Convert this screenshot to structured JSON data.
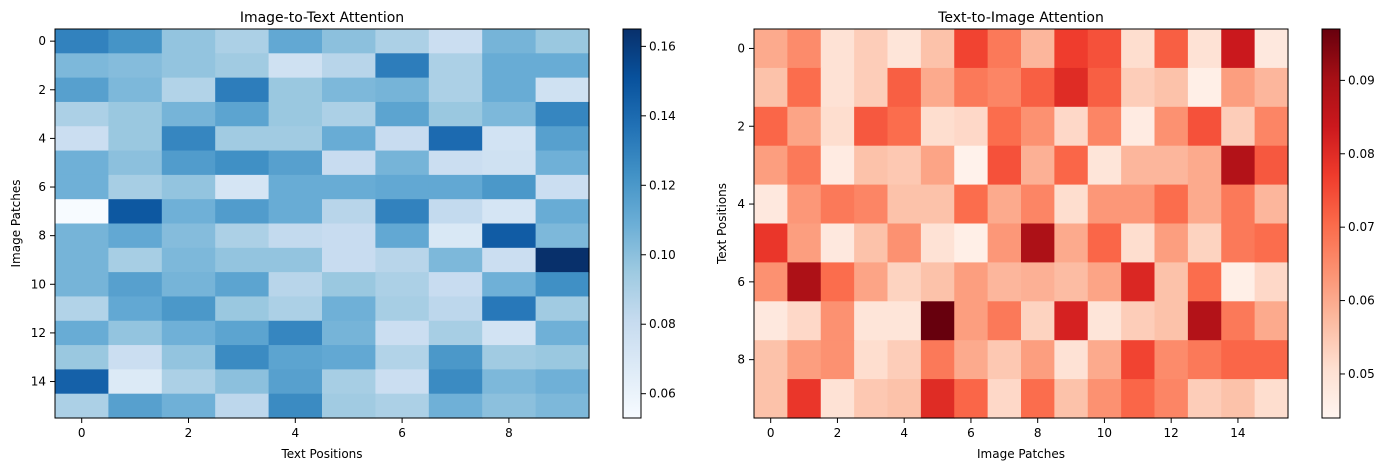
{
  "chart_data": [
    {
      "type": "heatmap",
      "title": "Image-to-Text Attention",
      "xlabel": "Text Positions",
      "ylabel": "Image Patches",
      "colormap": "Blues",
      "color_low": "#f7fbff",
      "color_high": "#08306b",
      "xticks": [
        0,
        2,
        4,
        6,
        8
      ],
      "yticks": [
        0,
        2,
        4,
        6,
        8,
        10,
        12,
        14
      ],
      "colorbar_range": [
        0.053,
        0.165
      ],
      "colorbar_ticks": [
        0.06,
        0.08,
        0.1,
        0.12,
        0.14,
        0.16
      ],
      "colorbar_tick_labels": [
        "0.06",
        "0.08",
        "0.10",
        "0.12",
        "0.14",
        "0.16"
      ],
      "values": [
        [
          0.13,
          0.122,
          0.098,
          0.09,
          0.112,
          0.1,
          0.09,
          0.078,
          0.106,
          0.096
        ],
        [
          0.104,
          0.102,
          0.098,
          0.094,
          0.076,
          0.086,
          0.132,
          0.09,
          0.11,
          0.11
        ],
        [
          0.116,
          0.104,
          0.088,
          0.132,
          0.096,
          0.104,
          0.106,
          0.09,
          0.11,
          0.076
        ],
        [
          0.09,
          0.096,
          0.106,
          0.114,
          0.096,
          0.09,
          0.114,
          0.096,
          0.104,
          0.128
        ],
        [
          0.078,
          0.096,
          0.128,
          0.094,
          0.094,
          0.11,
          0.08,
          0.14,
          0.074,
          0.116
        ],
        [
          0.108,
          0.1,
          0.118,
          0.124,
          0.116,
          0.08,
          0.106,
          0.078,
          0.076,
          0.108
        ],
        [
          0.108,
          0.092,
          0.098,
          0.072,
          0.11,
          0.11,
          0.112,
          0.112,
          0.12,
          0.078
        ],
        [
          0.053,
          0.148,
          0.108,
          0.118,
          0.11,
          0.086,
          0.13,
          0.082,
          0.072,
          0.11
        ],
        [
          0.106,
          0.112,
          0.102,
          0.09,
          0.082,
          0.08,
          0.112,
          0.07,
          0.146,
          0.104
        ],
        [
          0.106,
          0.092,
          0.104,
          0.098,
          0.098,
          0.08,
          0.086,
          0.104,
          0.078,
          0.165
        ],
        [
          0.106,
          0.116,
          0.106,
          0.114,
          0.086,
          0.096,
          0.09,
          0.08,
          0.108,
          0.124
        ],
        [
          0.088,
          0.112,
          0.12,
          0.096,
          0.09,
          0.108,
          0.092,
          0.084,
          0.134,
          0.094
        ],
        [
          0.11,
          0.098,
          0.108,
          0.114,
          0.128,
          0.106,
          0.078,
          0.092,
          0.074,
          0.108
        ],
        [
          0.096,
          0.078,
          0.098,
          0.126,
          0.114,
          0.112,
          0.088,
          0.12,
          0.094,
          0.096
        ],
        [
          0.144,
          0.068,
          0.09,
          0.1,
          0.116,
          0.092,
          0.078,
          0.126,
          0.104,
          0.108
        ],
        [
          0.09,
          0.116,
          0.108,
          0.084,
          0.126,
          0.094,
          0.09,
          0.108,
          0.1,
          0.104
        ]
      ]
    },
    {
      "type": "heatmap",
      "title": "Text-to-Image Attention",
      "xlabel": "Image Patches",
      "ylabel": "Text Positions",
      "colormap": "Reds",
      "color_low": "#fff5f0",
      "color_high": "#67000d",
      "xticks": [
        0,
        2,
        4,
        6,
        8,
        10,
        12,
        14
      ],
      "yticks": [
        0,
        2,
        4,
        6,
        8
      ],
      "colorbar_range": [
        0.044,
        0.097
      ],
      "colorbar_ticks": [
        0.05,
        0.06,
        0.07,
        0.08,
        0.09
      ],
      "colorbar_tick_labels": [
        "0.05",
        "0.06",
        "0.07",
        "0.08",
        "0.09"
      ],
      "values": [
        [
          0.06,
          0.065,
          0.05,
          0.054,
          0.049,
          0.056,
          0.076,
          0.068,
          0.058,
          0.077,
          0.074,
          0.051,
          0.072,
          0.05,
          0.084,
          0.048
        ],
        [
          0.056,
          0.07,
          0.05,
          0.054,
          0.072,
          0.06,
          0.068,
          0.066,
          0.072,
          0.08,
          0.072,
          0.054,
          0.056,
          0.046,
          0.062,
          0.058
        ],
        [
          0.071,
          0.061,
          0.051,
          0.073,
          0.07,
          0.051,
          0.052,
          0.07,
          0.064,
          0.052,
          0.066,
          0.047,
          0.064,
          0.074,
          0.054,
          0.066
        ],
        [
          0.062,
          0.068,
          0.047,
          0.056,
          0.055,
          0.061,
          0.045,
          0.074,
          0.059,
          0.071,
          0.049,
          0.058,
          0.058,
          0.06,
          0.088,
          0.073
        ],
        [
          0.048,
          0.063,
          0.068,
          0.066,
          0.056,
          0.056,
          0.07,
          0.06,
          0.066,
          0.051,
          0.063,
          0.063,
          0.07,
          0.06,
          0.068,
          0.058
        ],
        [
          0.078,
          0.062,
          0.048,
          0.056,
          0.064,
          0.05,
          0.046,
          0.063,
          0.089,
          0.06,
          0.071,
          0.051,
          0.062,
          0.053,
          0.068,
          0.07
        ],
        [
          0.064,
          0.089,
          0.07,
          0.061,
          0.053,
          0.056,
          0.062,
          0.058,
          0.059,
          0.057,
          0.061,
          0.081,
          0.056,
          0.07,
          0.046,
          0.052
        ],
        [
          0.048,
          0.052,
          0.064,
          0.049,
          0.049,
          0.097,
          0.062,
          0.068,
          0.053,
          0.082,
          0.049,
          0.054,
          0.056,
          0.088,
          0.068,
          0.06
        ],
        [
          0.056,
          0.062,
          0.064,
          0.051,
          0.054,
          0.068,
          0.06,
          0.055,
          0.062,
          0.05,
          0.06,
          0.076,
          0.065,
          0.068,
          0.071,
          0.071
        ],
        [
          0.056,
          0.078,
          0.05,
          0.055,
          0.056,
          0.08,
          0.071,
          0.052,
          0.07,
          0.056,
          0.064,
          0.071,
          0.066,
          0.054,
          0.056,
          0.051
        ]
      ]
    }
  ]
}
